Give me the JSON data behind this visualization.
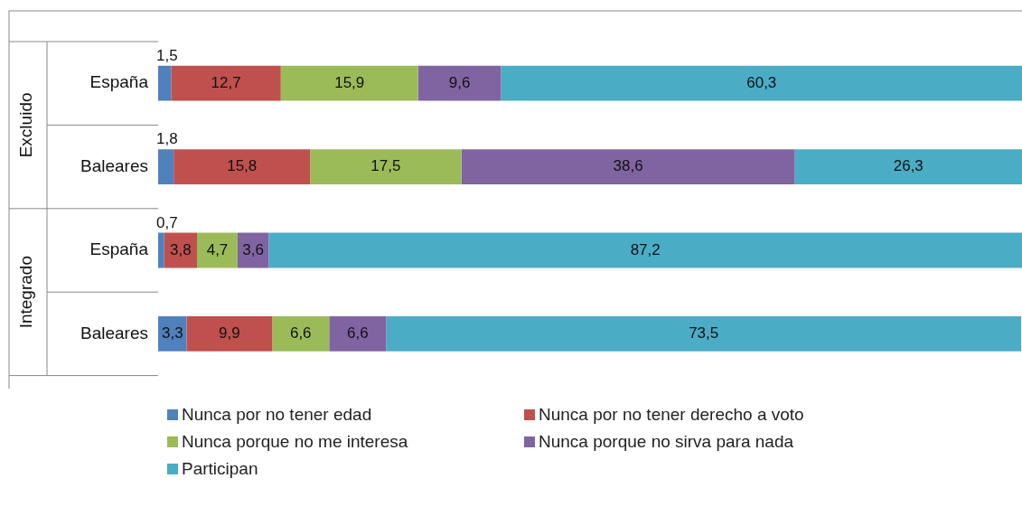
{
  "chart_data": {
    "type": "bar",
    "orientation": "horizontal",
    "stacked": true,
    "legend": "bottom",
    "tick_labels": "y",
    "categories": [
      "España",
      "Baleares",
      "España",
      "Baleares"
    ],
    "annotations": [
      "Excluido",
      "Integrado"
    ],
    "series": [
      {
        "name": "Nunca por no tener edad",
        "color": "#4f81bd",
        "values": [
          1.5,
          1.8,
          0.7,
          3.3
        ],
        "value_labels": [
          "1,5",
          "1,8",
          "0,7",
          "3,3"
        ]
      },
      {
        "name": "Nunca por no tener derecho a voto",
        "color": "#c0504d",
        "values": [
          12.7,
          15.8,
          3.8,
          9.9
        ],
        "value_labels": [
          "12,7",
          "15,8",
          "3,8",
          "9,9"
        ]
      },
      {
        "name": "Nunca porque no me interesa",
        "color": "#9bbb59",
        "values": [
          15.9,
          17.5,
          4.7,
          6.6
        ],
        "value_labels": [
          "15,9",
          "17,5",
          "4,7",
          "6,6"
        ]
      },
      {
        "name": "Nunca porque no sirva para nada",
        "color": "#8064a2",
        "values": [
          9.6,
          38.6,
          3.6,
          6.6
        ],
        "value_labels": [
          "9,6",
          "38,6",
          "3,6",
          "6,6"
        ]
      },
      {
        "name": "Participan",
        "color": "#4bacc6",
        "values": [
          60.3,
          26.3,
          87.2,
          73.5
        ],
        "value_labels": [
          "60,3",
          "26,3",
          "87,2",
          "73,5"
        ]
      }
    ]
  }
}
